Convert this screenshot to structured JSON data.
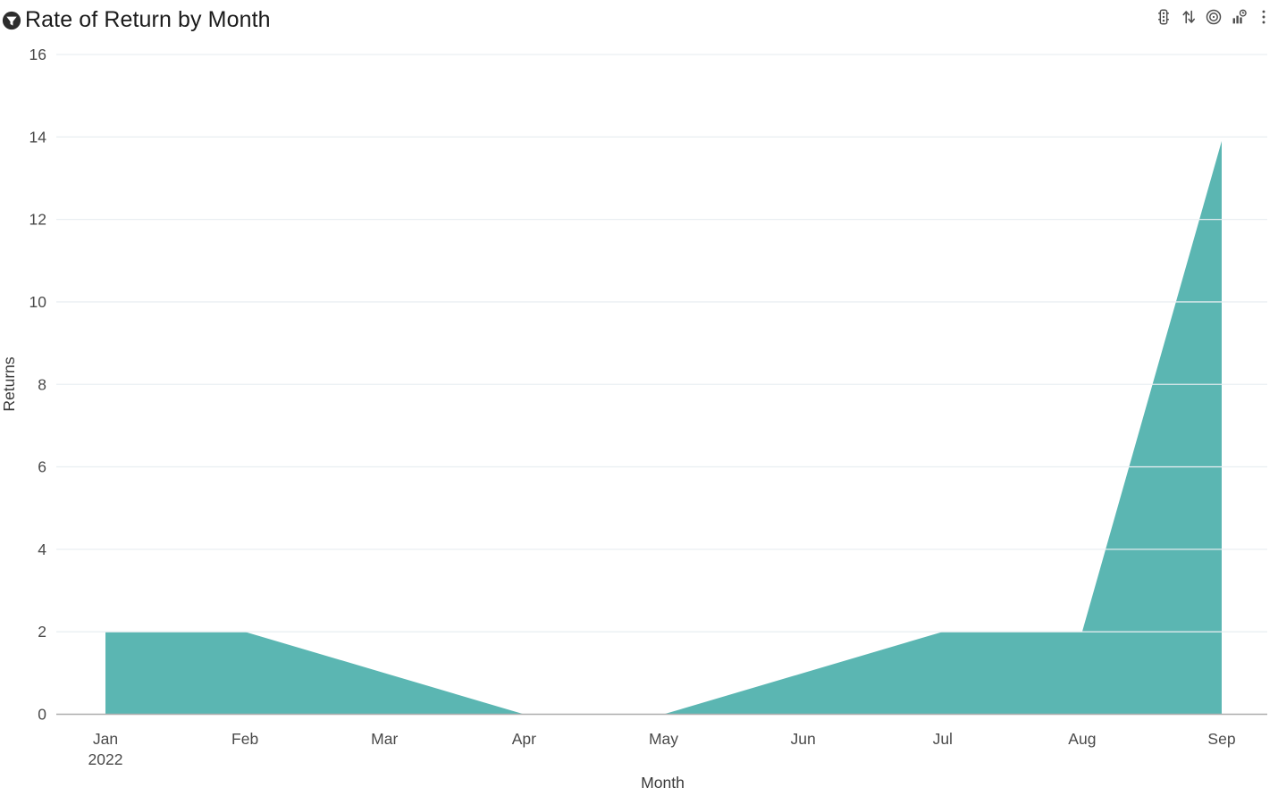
{
  "header": {
    "title": "Rate of Return by Month",
    "title_icon": "filter-circle-icon",
    "toolbar_icons": [
      "traffic-light-icon",
      "sort-arrows-icon",
      "target-icon",
      "bar-chart-clock-icon",
      "kebab-menu-icon"
    ]
  },
  "chart_data": {
    "type": "area",
    "title": "Rate of Return by Month",
    "xlabel": "Month",
    "ylabel": "Returns",
    "categories": [
      "Jan",
      "Feb",
      "Mar",
      "Apr",
      "May",
      "Jun",
      "Jul",
      "Aug",
      "Sep"
    ],
    "first_category_year": "2022",
    "values": [
      2,
      2,
      1,
      0,
      0,
      1,
      2,
      2,
      13.9
    ],
    "ylim": [
      0,
      16
    ],
    "yticks": [
      0,
      2,
      4,
      6,
      8,
      10,
      12,
      14,
      16
    ],
    "grid": true,
    "legend": "none",
    "area_color": "#5BB6B2",
    "gridline_color": "#E9EEF1",
    "axis_line_color": "#AEAEAE",
    "tick_label_color": "#4A4A4A",
    "axis_title_color": "#3A3A3A"
  }
}
